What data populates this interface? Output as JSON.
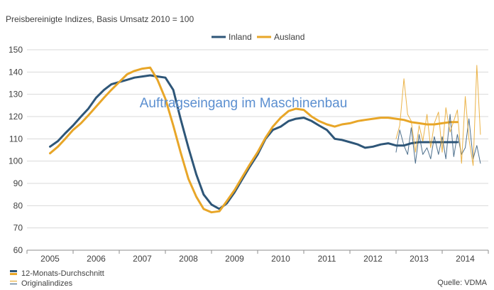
{
  "subtitle": "Preisbereinigte Indizes, Basis Umsatz 2010 = 100",
  "source": "Quelle: VDMA",
  "footer_legend": {
    "avg": "12-Monats-Durchschnitt",
    "orig": "Originalindizes"
  },
  "colors": {
    "inland": "#2e5678",
    "ausland": "#e8a628",
    "annotation": "#5b8fd0",
    "grid": "#d9d9d9",
    "axis": "#8c8c8c"
  },
  "chart_data": {
    "type": "line",
    "title": "Auftragseingang im Maschinenbau",
    "ylim": [
      60,
      150
    ],
    "yticks": [
      60,
      70,
      80,
      90,
      100,
      110,
      120,
      130,
      140,
      150
    ],
    "xlim": [
      2004.5,
      2014.5
    ],
    "xtick_labels": [
      "2005",
      "2006",
      "2007",
      "2008",
      "2009",
      "2010",
      "2011",
      "2012",
      "2013",
      "2014"
    ],
    "grid": "horizontal",
    "legend_position": "top",
    "series": [
      {
        "name": "Inland",
        "style": "12-Monats-Durchschnitt",
        "x": [
          2005.0,
          2005.17,
          2005.33,
          2005.5,
          2005.67,
          2005.83,
          2006.0,
          2006.17,
          2006.33,
          2006.5,
          2006.67,
          2006.83,
          2007.0,
          2007.17,
          2007.33,
          2007.5,
          2007.67,
          2007.83,
          2008.0,
          2008.17,
          2008.33,
          2008.5,
          2008.67,
          2008.83,
          2009.0,
          2009.17,
          2009.33,
          2009.5,
          2009.67,
          2009.83,
          2010.0,
          2010.17,
          2010.33,
          2010.5,
          2010.67,
          2010.83,
          2011.0,
          2011.17,
          2011.33,
          2011.5,
          2011.67,
          2011.83,
          2012.0,
          2012.17,
          2012.33,
          2012.5,
          2012.67,
          2012.83,
          2013.0,
          2013.17,
          2013.33,
          2013.5,
          2013.67,
          2013.83
        ],
        "values": [
          106.5,
          109,
          112.5,
          116,
          120,
          123.5,
          128.5,
          132,
          134.5,
          135.5,
          136.5,
          137.5,
          138,
          138.5,
          138,
          137.5,
          132,
          119,
          106,
          94,
          85,
          80.5,
          78.5,
          81,
          86,
          92,
          97.5,
          103,
          110,
          114,
          115.5,
          118,
          119,
          119.5,
          118,
          116,
          114,
          110,
          109.5,
          108.5,
          107.5,
          106,
          106.5,
          107.5,
          108,
          107,
          107,
          108,
          108.5,
          108.5,
          108.5,
          108.5,
          108.5,
          108.5
        ]
      },
      {
        "name": "Ausland",
        "style": "12-Monats-Durchschnitt",
        "x": [
          2005.0,
          2005.17,
          2005.33,
          2005.5,
          2005.67,
          2005.83,
          2006.0,
          2006.17,
          2006.33,
          2006.5,
          2006.67,
          2006.83,
          2007.0,
          2007.17,
          2007.33,
          2007.5,
          2007.67,
          2007.83,
          2008.0,
          2008.17,
          2008.33,
          2008.5,
          2008.67,
          2008.83,
          2009.0,
          2009.17,
          2009.33,
          2009.5,
          2009.67,
          2009.83,
          2010.0,
          2010.17,
          2010.33,
          2010.5,
          2010.67,
          2010.83,
          2011.0,
          2011.17,
          2011.33,
          2011.5,
          2011.67,
          2011.83,
          2012.0,
          2012.17,
          2012.33,
          2012.5,
          2012.67,
          2012.83,
          2013.0,
          2013.17,
          2013.33,
          2013.5,
          2013.67,
          2013.83
        ],
        "values": [
          103.5,
          106.5,
          110,
          114,
          117,
          120.5,
          124.5,
          128.5,
          132,
          135.5,
          139,
          140.5,
          141.5,
          142,
          136.5,
          128,
          116,
          104,
          92,
          84,
          78.5,
          77,
          77.5,
          82,
          87,
          93,
          98.5,
          104,
          110.5,
          115.5,
          119.5,
          122.5,
          123.5,
          123,
          120,
          118,
          116.5,
          115.5,
          116.5,
          117,
          118,
          118.5,
          119,
          119.5,
          119.5,
          119,
          118.5,
          117.5,
          117,
          116.5,
          116.5,
          117,
          117.5,
          117.5
        ]
      },
      {
        "name": "Inland",
        "style": "Originalindizes",
        "x": [
          2012.5,
          2012.58,
          2012.67,
          2012.75,
          2012.83,
          2012.92,
          2013.0,
          2013.08,
          2013.17,
          2013.25,
          2013.33,
          2013.42,
          2013.5,
          2013.58,
          2013.67,
          2013.75,
          2013.83,
          2013.92,
          2014.0,
          2014.08,
          2014.17,
          2014.25,
          2014.33
        ],
        "values": [
          104,
          114,
          107,
          103,
          115,
          99,
          112,
          103,
          106,
          101,
          111,
          103,
          111,
          101,
          121,
          102,
          112,
          103,
          106,
          119,
          101,
          107,
          99
        ]
      },
      {
        "name": "Ausland",
        "style": "Originalindizes",
        "x": [
          2012.5,
          2012.58,
          2012.67,
          2012.75,
          2012.83,
          2012.92,
          2013.0,
          2013.08,
          2013.17,
          2013.25,
          2013.33,
          2013.42,
          2013.5,
          2013.58,
          2013.67,
          2013.75,
          2013.83,
          2013.92,
          2014.0,
          2014.08,
          2014.17,
          2014.25,
          2014.33
        ],
        "values": [
          110,
          116,
          137,
          121,
          118,
          104,
          116,
          109,
          121,
          106,
          117,
          122,
          104,
          124,
          113,
          118,
          123,
          99,
          129,
          110,
          98,
          143,
          112
        ]
      }
    ]
  }
}
